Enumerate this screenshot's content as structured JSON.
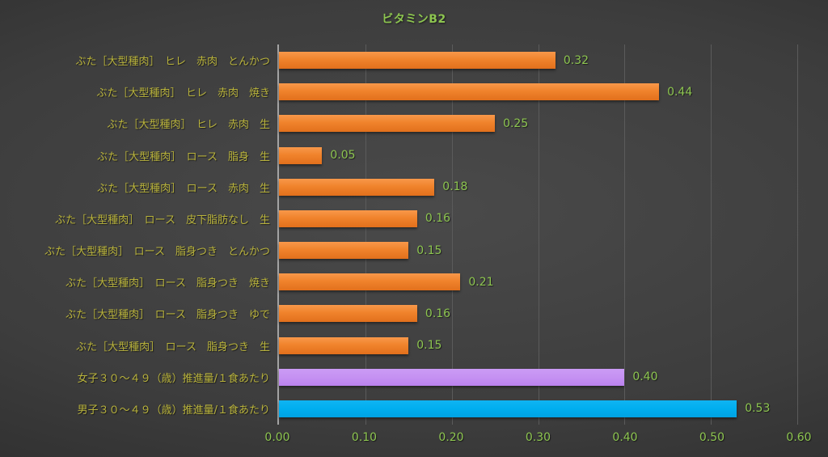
{
  "title": "ビタミンB2",
  "colors": {
    "title_text": "#8dc550",
    "category_label_text": "#b9b33c",
    "value_label_text": "#8dc550",
    "tick_label_text": "#8dc550",
    "axis_line": "#a3a3a3",
    "gridline": "#5b5b5b",
    "background_center": "#4a4a4a",
    "background_edge": "#222222",
    "bar_orange": "#f0832c",
    "bar_purple": "#c591f2",
    "bar_blue": "#00aeef"
  },
  "chart_data": {
    "type": "bar",
    "orientation": "horizontal",
    "title": "ビタミンB2",
    "categories": [
      "ぶた［大型種肉］　ヒレ　赤肉　とんかつ",
      "ぶた［大型種肉］　ヒレ　赤肉　焼き",
      "ぶた［大型種肉］　ヒレ　赤肉　生",
      "ぶた［大型種肉］　ロース　脂身　生",
      "ぶた［大型種肉］　ロース　赤肉　生",
      "ぶた［大型種肉］　ロース　皮下脂肪なし　生",
      "ぶた［大型種肉］　ロース　脂身つき　とんかつ",
      "ぶた［大型種肉］　ロース　脂身つき　焼き",
      "ぶた［大型種肉］　ロース　脂身つき　ゆで",
      "ぶた［大型種肉］　ロース　脂身つき　生",
      "女子３０～４９（歳）推進量/１食あたり",
      "男子３０～４９（歳）推進量/１食あたり"
    ],
    "values": [
      0.32,
      0.44,
      0.25,
      0.05,
      0.18,
      0.16,
      0.15,
      0.21,
      0.16,
      0.15,
      0.4,
      0.53
    ],
    "value_labels": [
      "0.32",
      "0.44",
      "0.25",
      "0.05",
      "0.18",
      "0.16",
      "0.15",
      "0.21",
      "0.16",
      "0.15",
      "0.40",
      "0.53"
    ],
    "bar_colors": [
      "orange",
      "orange",
      "orange",
      "orange",
      "orange",
      "orange",
      "orange",
      "orange",
      "orange",
      "orange",
      "purple",
      "blue"
    ],
    "xlabel": "",
    "ylabel": "",
    "xlim": [
      0,
      0.6
    ],
    "x_ticks": [
      "0.00",
      "0.10",
      "0.20",
      "0.30",
      "0.40",
      "0.50",
      "0.60"
    ],
    "x_tick_values": [
      0.0,
      0.1,
      0.2,
      0.3,
      0.4,
      0.5,
      0.6
    ],
    "grid": true,
    "legend": false,
    "data_labels": true
  }
}
